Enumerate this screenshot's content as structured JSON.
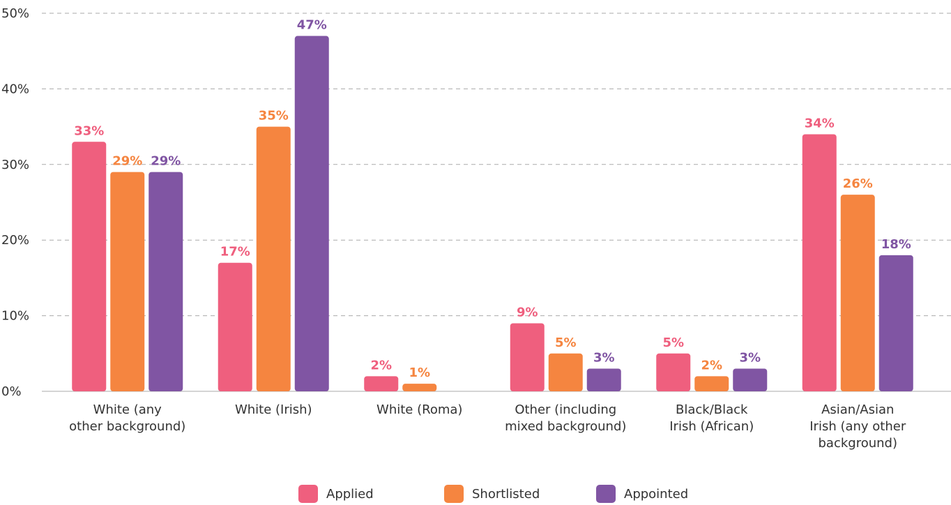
{
  "chart_data": {
    "type": "bar",
    "categories": [
      "White (any\nother background)",
      "White (Irish)",
      "White (Roma)",
      "Other (including\nmixed background)",
      "Black/Black\nIrish (African)",
      "Asian/Asian\nIrish (any other\nbackground)"
    ],
    "series": [
      {
        "name": "Applied",
        "color": "#ef5f7e",
        "values": [
          33,
          17,
          2,
          9,
          5,
          34
        ],
        "value_labels": [
          "33%",
          "17%",
          "2%",
          "9%",
          "5%",
          "34%"
        ]
      },
      {
        "name": "Shortlisted",
        "color": "#f58540",
        "values": [
          29,
          35,
          1,
          5,
          2,
          26
        ],
        "value_labels": [
          "29%",
          "35%",
          "1%",
          "5%",
          "2%",
          "26%"
        ]
      },
      {
        "name": "Appointed",
        "color": "#8055a3",
        "values": [
          29,
          47,
          null,
          3,
          3,
          18
        ],
        "value_labels": [
          "29%",
          "47%",
          null,
          "3%",
          "3%",
          "18%"
        ]
      }
    ],
    "ylim": [
      0,
      50
    ],
    "yticks": [
      {
        "value": 0,
        "label": "0%"
      },
      {
        "value": 10,
        "label": "10%"
      },
      {
        "value": 20,
        "label": "20%"
      },
      {
        "value": 30,
        "label": "30%"
      },
      {
        "value": 40,
        "label": "40%"
      },
      {
        "value": 50,
        "label": "50%"
      }
    ],
    "grid": true,
    "legend": "bottom"
  }
}
